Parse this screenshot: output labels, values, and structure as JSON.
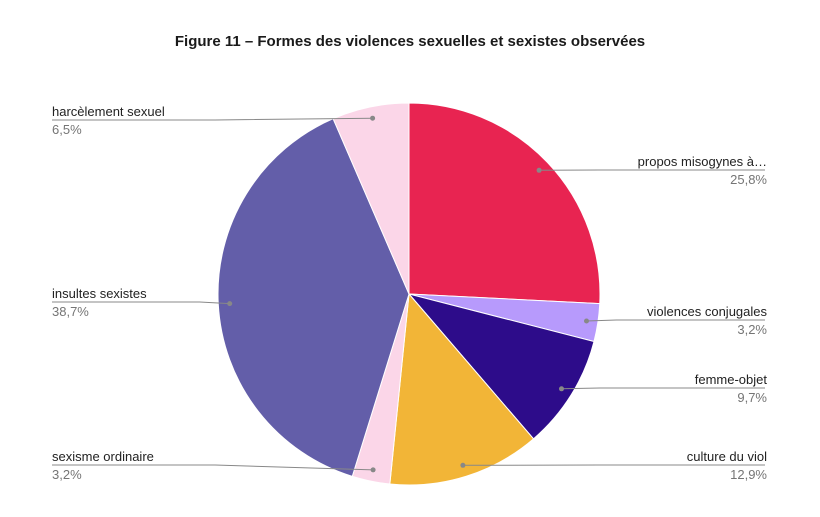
{
  "chart_data": {
    "type": "pie",
    "title": "Figure 11 – Formes des violences sexuelles et sexistes observées",
    "slices": [
      {
        "label": "propos misogynes à…",
        "value": 25.8,
        "display": "25,8%",
        "color": "#e82451"
      },
      {
        "label": "violences conjugales",
        "value": 3.2,
        "display": "3,2%",
        "color": "#b79afc"
      },
      {
        "label": "femme-objet",
        "value": 9.7,
        "display": "9,7%",
        "color": "#2d0c8a"
      },
      {
        "label": "culture du viol",
        "value": 12.9,
        "display": "12,9%",
        "color": "#f2b537"
      },
      {
        "label": "sexisme ordinaire",
        "value": 3.2,
        "display": "3,2%",
        "color": "#fbd6e8"
      },
      {
        "label": "insultes sexistes",
        "value": 38.7,
        "display": "38,7%",
        "color": "#635ea9"
      },
      {
        "label": "harcèlement sexuel",
        "value": 6.5,
        "display": "6,5%",
        "color": "#fbd6e8"
      }
    ],
    "legend": "none"
  }
}
